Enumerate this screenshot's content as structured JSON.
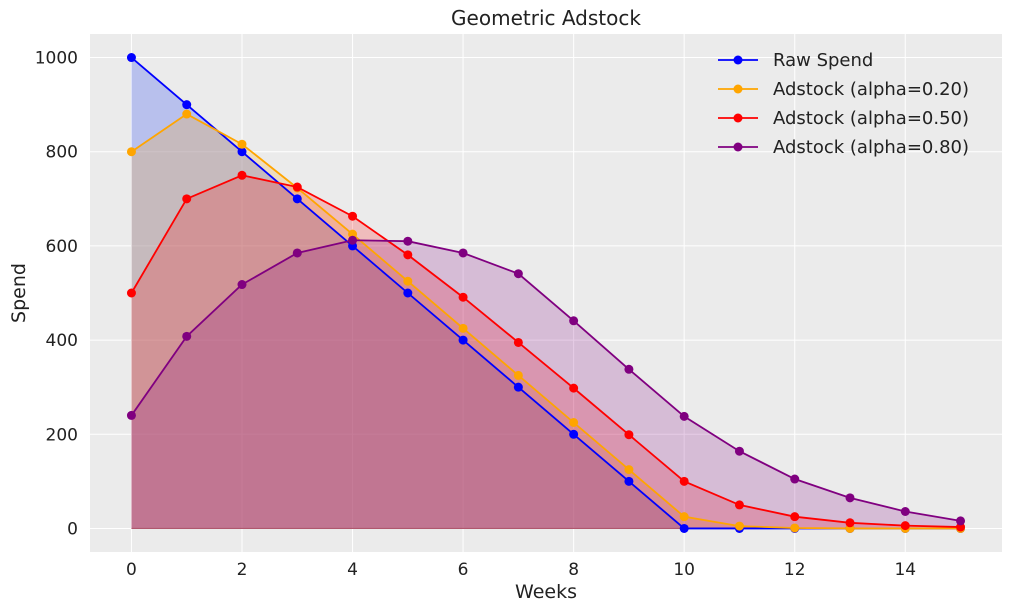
{
  "chart_data": {
    "type": "line",
    "title": "Geometric Adstock",
    "xlabel": "Weeks",
    "ylabel": "Spend",
    "xlim": [
      -0.75,
      15.75
    ],
    "ylim": [
      -50,
      1050
    ],
    "x_ticks": [
      0,
      2,
      4,
      6,
      8,
      10,
      12,
      14
    ],
    "y_ticks": [
      0,
      200,
      400,
      600,
      800,
      1000
    ],
    "grid": true,
    "legend_position": "top-right",
    "x": [
      0,
      1,
      2,
      3,
      4,
      5,
      6,
      7,
      8,
      9,
      10,
      11,
      12,
      13,
      14,
      15
    ],
    "series": [
      {
        "name": "Raw Spend",
        "color": "#0000ff",
        "fill_color": "#7b8cf0",
        "fill_opacity": 0.45,
        "values": [
          1000,
          900,
          800,
          700,
          600,
          500,
          400,
          300,
          200,
          100,
          0,
          0,
          0,
          0,
          0,
          0
        ]
      },
      {
        "name": "Adstock (alpha=0.20)",
        "color": "#ffa500",
        "fill_color": "#ffa500",
        "fill_opacity": 0.2,
        "values": [
          800,
          880,
          816,
          723,
          625,
          525,
          425,
          325,
          225,
          125,
          25,
          5,
          1,
          0,
          0,
          0
        ]
      },
      {
        "name": "Adstock (alpha=0.50)",
        "color": "#ff0000",
        "fill_color": "#ff0000",
        "fill_opacity": 0.2,
        "values": [
          500,
          700,
          750,
          725,
          663,
          581,
          491,
          395,
          298,
          199,
          100,
          50,
          25,
          12,
          6,
          3
        ]
      },
      {
        "name": "Adstock (alpha=0.80)",
        "color": "#800080",
        "fill_color": "#800080",
        "fill_opacity": 0.2,
        "values": [
          240,
          408,
          518,
          585,
          612,
          610,
          585,
          541,
          441,
          338,
          238,
          164,
          105,
          65,
          36,
          16
        ]
      }
    ]
  }
}
